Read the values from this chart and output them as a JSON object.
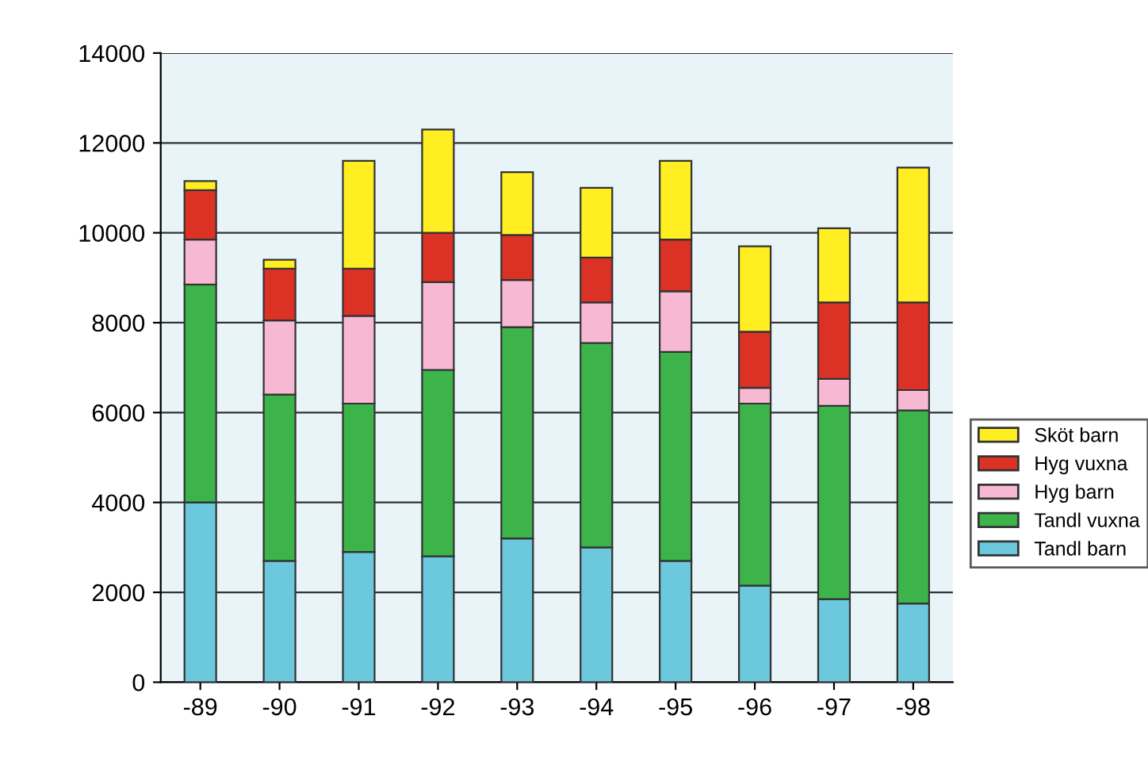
{
  "chart_data": {
    "type": "bar",
    "stacked": true,
    "categories": [
      "-89",
      "-90",
      "-91",
      "-92",
      "-93",
      "-94",
      "-95",
      "-96",
      "-97",
      "-98"
    ],
    "series": [
      {
        "name": "Tandl barn",
        "color": "#6cc8dc",
        "values": [
          4000,
          2700,
          2900,
          2800,
          3200,
          3000,
          2700,
          2150,
          1850,
          1750
        ]
      },
      {
        "name": "Tandl vuxna",
        "color": "#3cb44a",
        "values": [
          4850,
          3700,
          3300,
          4150,
          4700,
          4550,
          4650,
          4050,
          4300,
          4300
        ]
      },
      {
        "name": "Hyg barn",
        "color": "#f7b8d4",
        "values": [
          1000,
          1650,
          1950,
          1950,
          1050,
          900,
          1350,
          350,
          600,
          450
        ]
      },
      {
        "name": "Hyg vuxna",
        "color": "#dc3226",
        "values": [
          1100,
          1150,
          1050,
          1100,
          1000,
          1000,
          1150,
          1250,
          1700,
          1950
        ]
      },
      {
        "name": "Sköt barn",
        "color": "#ffee22",
        "values": [
          200,
          200,
          2400,
          2300,
          1400,
          1550,
          1750,
          1900,
          1650,
          3000
        ]
      }
    ],
    "ylim": [
      0,
      14000
    ],
    "yticks": [
      0,
      2000,
      4000,
      6000,
      8000,
      10000,
      12000,
      14000
    ],
    "grid": "y",
    "legend": "right"
  }
}
